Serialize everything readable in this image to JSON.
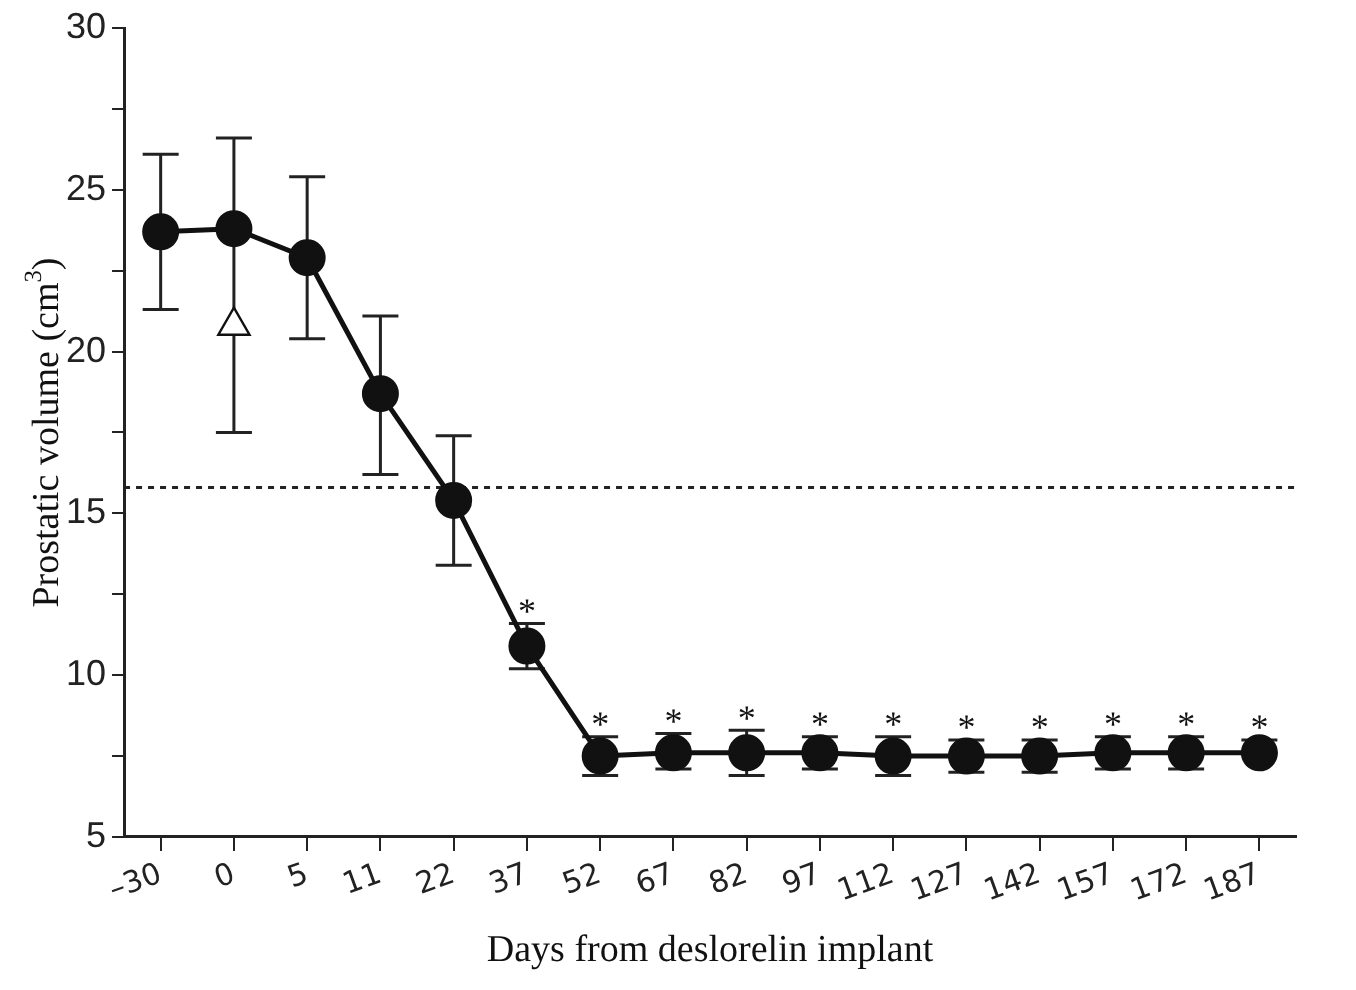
{
  "chart_data": {
    "type": "line",
    "xlabel": "Days from deslorelin implant",
    "ylabel": "Prostatic volume (cm$^{3}$)",
    "categories": [
      "–30",
      "0",
      "5",
      "11",
      "22",
      "37",
      "52",
      "67",
      "82",
      "97",
      "112",
      "127",
      "142",
      "157",
      "172",
      "187"
    ],
    "series": [
      {
        "color": "#111111",
        "marker": "circle",
        "values": [
          23.7,
          23.8,
          22.9,
          18.7,
          15.4,
          10.9,
          7.5,
          7.6,
          7.6,
          7.6,
          7.5,
          7.5,
          7.5,
          7.6,
          7.6,
          7.6
        ],
        "errors": [
          [
            21.3,
            26.1
          ],
          [
            17.5,
            26.6
          ],
          [
            20.4,
            25.4
          ],
          [
            16.2,
            21.1
          ],
          [
            13.4,
            17.4
          ],
          [
            10.2,
            11.6
          ],
          [
            6.9,
            8.1
          ],
          [
            7.1,
            8.2
          ],
          [
            6.9,
            8.3
          ],
          [
            7.1,
            8.1
          ],
          [
            6.9,
            8.1
          ],
          [
            7.0,
            8.0
          ],
          [
            7.0,
            8.0
          ],
          [
            7.1,
            8.1
          ],
          [
            7.1,
            8.1
          ],
          [
            7.6,
            8.0
          ]
        ]
      },
      {
        "type": "scatter",
        "marker": "triangle",
        "color": "#ffffff",
        "x": [
          "0"
        ],
        "values": [
          20.8
        ]
      }
    ],
    "ylim": [
      5,
      30
    ],
    "yticks": [
      5,
      {
        "value": 7.5,
        "label": null
      },
      10,
      {
        "value": 12.5,
        "label": null
      },
      15,
      {
        "value": 17.5,
        "label": null
      },
      20,
      {
        "value": 22.5,
        "label": null
      },
      25,
      {
        "value": 27.5,
        "label": null
      },
      30
    ],
    "ref_lines": [
      {
        "axis": "y",
        "value": 15.8,
        "line_style": "dotted",
        "color": "#222222"
      }
    ],
    "annotations": [
      {
        "text": "*",
        "x": "37",
        "y": 11.6
      },
      {
        "text": "*",
        "x": "52",
        "y": 8.1
      },
      {
        "text": "*",
        "x": "67",
        "y": 8.2
      },
      {
        "text": "*",
        "x": "82",
        "y": 8.3
      },
      {
        "text": "*",
        "x": "97",
        "y": 8.1
      },
      {
        "text": "*",
        "x": "112",
        "y": 8.1
      },
      {
        "text": "*",
        "x": "127",
        "y": 8.0
      },
      {
        "text": "*",
        "x": "142",
        "y": 8.0
      },
      {
        "text": "*",
        "x": "157",
        "y": 8.1
      },
      {
        "text": "*",
        "x": "172",
        "y": 8.1
      },
      {
        "text": "*",
        "x": "187",
        "y": 8.0
      }
    ],
    "grid": false,
    "legend": false,
    "line_style": "solid"
  }
}
